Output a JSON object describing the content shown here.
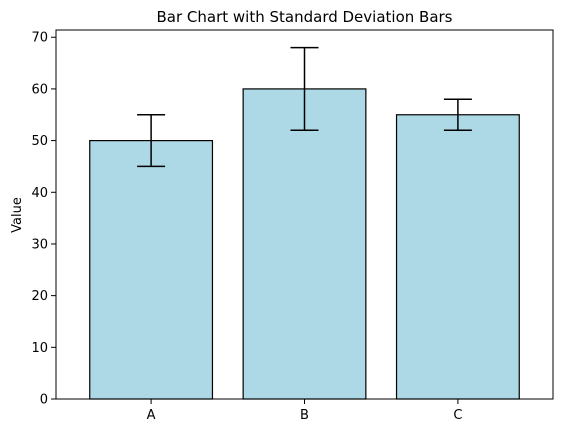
{
  "chart_data": {
    "type": "bar",
    "title": "Bar Chart with Standard Deviation Bars",
    "xlabel": "",
    "ylabel": "Value",
    "categories": [
      "A",
      "B",
      "C"
    ],
    "values": [
      50,
      60,
      55
    ],
    "errors": [
      5,
      8,
      3
    ],
    "ylim": [
      0,
      71.4
    ],
    "yticks": [
      0,
      10,
      20,
      30,
      40,
      50,
      60,
      70
    ],
    "grid": false,
    "legend": "none",
    "bar_color": "#add8e6",
    "edge_color": "#000000",
    "error_color": "#000000"
  }
}
